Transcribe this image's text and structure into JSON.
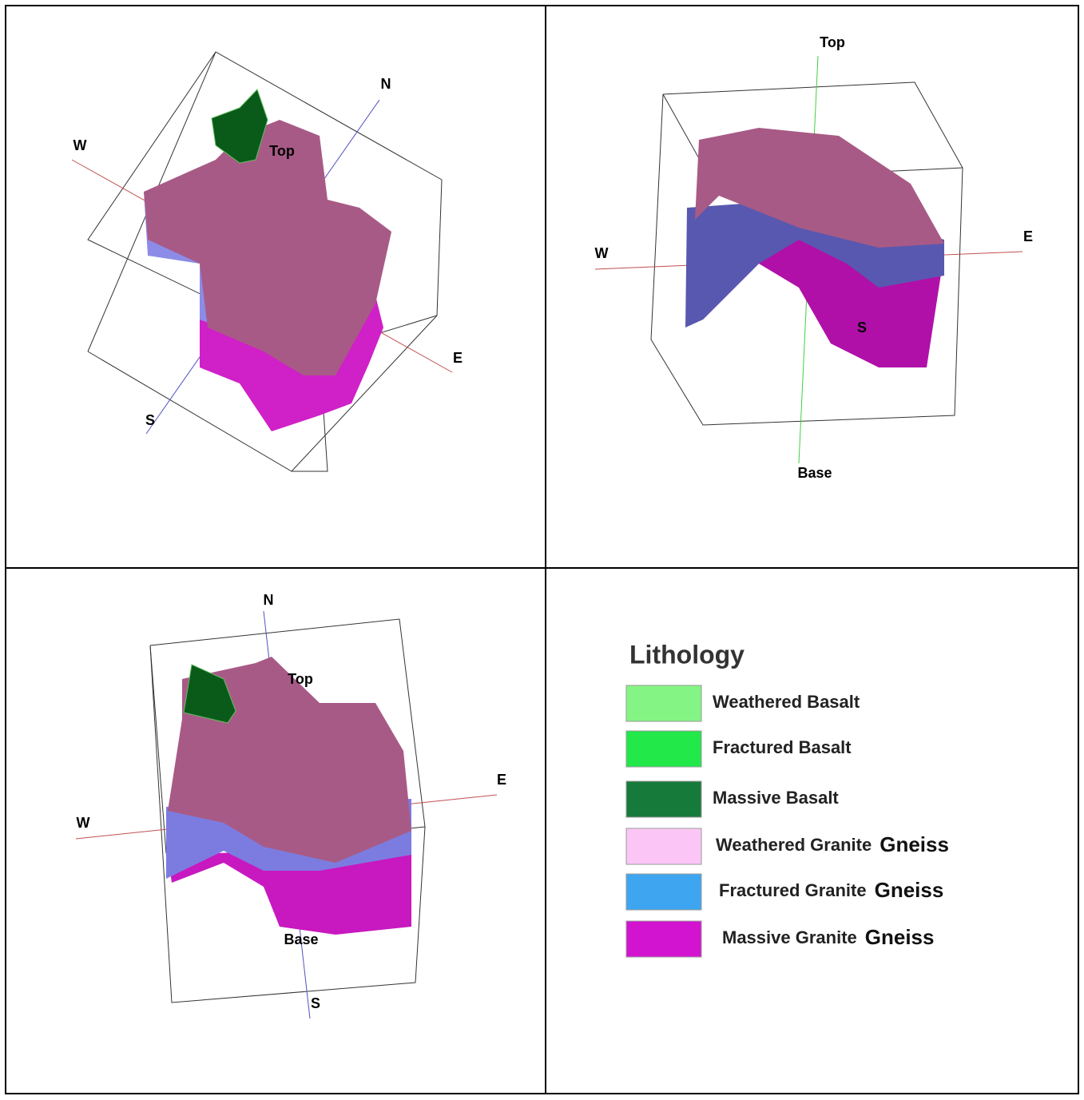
{
  "panels": [
    {
      "labels": {
        "west": "W",
        "north": "N",
        "east": "E",
        "south": "S",
        "top": "Top"
      }
    },
    {
      "labels": {
        "top": "Top",
        "west": "W",
        "east": "E",
        "south": "S",
        "base": "Base"
      }
    },
    {
      "labels": {
        "north": "N",
        "top": "Top",
        "east": "E",
        "west": "W",
        "base": "Base",
        "south": "S"
      }
    }
  ],
  "legend": {
    "title": "Lithology",
    "items": [
      {
        "label": "Weathered Basalt",
        "color": "#84f584"
      },
      {
        "label": "Fractured Basalt",
        "color": "#22e84a"
      },
      {
        "label": "Massive Basalt",
        "color": "#167a3a"
      },
      {
        "label": "Weathered Granite",
        "suffix": "Gneiss",
        "color": "#fbc6f6"
      },
      {
        "label": "Fractured Granite",
        "suffix": "Gneiss",
        "color": "#3ea6f0"
      },
      {
        "label": "Massive Granite",
        "suffix": "Gneiss",
        "color": "#d214d0"
      }
    ]
  }
}
